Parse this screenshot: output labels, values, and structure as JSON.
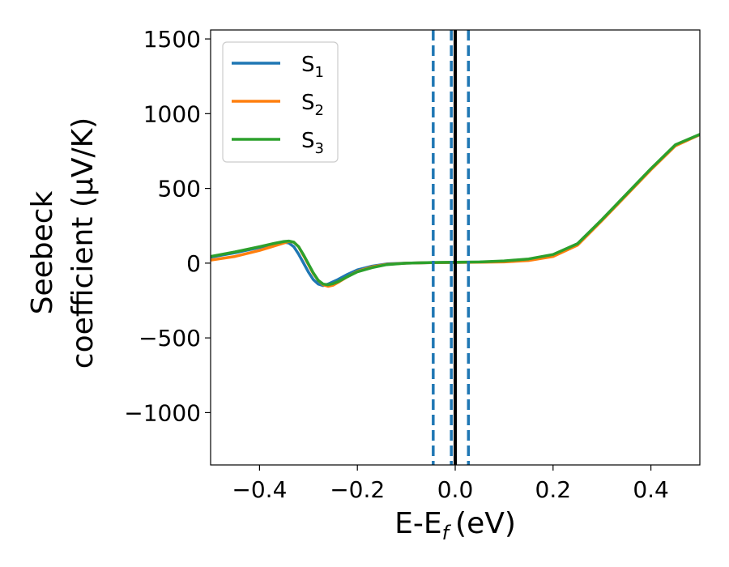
{
  "chart_data": {
    "type": "line",
    "title": "",
    "xlabel": "E-E",
    "xlabel_subscript": "f",
    "xlabel_unit": "(eV)",
    "ylabel_line1": "Seebeck",
    "ylabel_line2": "coefficient  (μV/K)",
    "xlim": [
      -0.5,
      0.5
    ],
    "ylim": [
      -1350,
      1560
    ],
    "xticks": [
      -0.4,
      -0.2,
      0.0,
      0.2,
      0.4
    ],
    "xtick_labels": [
      "−0.4",
      "−0.2",
      "0.0",
      "0.2",
      "0.4"
    ],
    "yticks": [
      -1000,
      -500,
      0,
      500,
      1000,
      1500
    ],
    "ytick_labels": [
      "−1000",
      "−500",
      "0",
      "500",
      "1000",
      "1500"
    ],
    "legend_position": "top-left",
    "series": [
      {
        "name": "S",
        "name_subscript": "1",
        "color": "#1f77b4",
        "x": [
          -0.5,
          -0.45,
          -0.4,
          -0.37,
          -0.35,
          -0.34,
          -0.33,
          -0.32,
          -0.31,
          -0.3,
          -0.29,
          -0.28,
          -0.27,
          -0.26,
          -0.24,
          -0.22,
          -0.2,
          -0.17,
          -0.14,
          -0.1,
          -0.05,
          0.0,
          0.05,
          0.1,
          0.15,
          0.2,
          0.25,
          0.3,
          0.35,
          0.4,
          0.45,
          0.5
        ],
        "y": [
          40,
          70,
          105,
          130,
          140,
          135,
          110,
          60,
          0,
          -60,
          -110,
          -140,
          -150,
          -140,
          -110,
          -75,
          -45,
          -20,
          -5,
          0,
          3,
          5,
          7,
          12,
          25,
          55,
          130,
          290,
          460,
          630,
          790,
          860
        ]
      },
      {
        "name": "S",
        "name_subscript": "2",
        "color": "#ff7f0e",
        "x": [
          -0.5,
          -0.45,
          -0.4,
          -0.37,
          -0.35,
          -0.34,
          -0.33,
          -0.32,
          -0.31,
          -0.3,
          -0.29,
          -0.28,
          -0.27,
          -0.26,
          -0.25,
          -0.24,
          -0.22,
          -0.2,
          -0.17,
          -0.14,
          -0.1,
          -0.05,
          0.0,
          0.05,
          0.1,
          0.15,
          0.2,
          0.25,
          0.3,
          0.35,
          0.4,
          0.45,
          0.5
        ],
        "y": [
          20,
          45,
          85,
          115,
          135,
          145,
          140,
          110,
          50,
          -10,
          -70,
          -115,
          -145,
          -155,
          -148,
          -130,
          -90,
          -55,
          -25,
          -8,
          0,
          3,
          5,
          6,
          8,
          18,
          45,
          120,
          285,
          455,
          625,
          785,
          860
        ]
      },
      {
        "name": "S",
        "name_subscript": "3",
        "color": "#2ca02c",
        "x": [
          -0.5,
          -0.45,
          -0.4,
          -0.37,
          -0.35,
          -0.34,
          -0.33,
          -0.32,
          -0.31,
          -0.3,
          -0.29,
          -0.28,
          -0.27,
          -0.26,
          -0.25,
          -0.24,
          -0.22,
          -0.2,
          -0.17,
          -0.14,
          -0.1,
          -0.05,
          0.0,
          0.05,
          0.1,
          0.15,
          0.2,
          0.25,
          0.3,
          0.35,
          0.4,
          0.45,
          0.5
        ],
        "y": [
          45,
          75,
          110,
          132,
          145,
          148,
          140,
          110,
          55,
          -5,
          -65,
          -115,
          -140,
          -145,
          -138,
          -125,
          -90,
          -58,
          -30,
          -10,
          0,
          4,
          6,
          8,
          15,
          28,
          58,
          130,
          292,
          462,
          632,
          792,
          862
        ]
      }
    ],
    "vlines": [
      {
        "x": -0.045,
        "style": "dashed",
        "color": "#1f77b4"
      },
      {
        "x": -0.008,
        "style": "dashed",
        "color": "#1f77b4"
      },
      {
        "x": 0.0,
        "style": "solid",
        "color": "#000000"
      },
      {
        "x": 0.027,
        "style": "dashed",
        "color": "#1f77b4"
      }
    ]
  }
}
